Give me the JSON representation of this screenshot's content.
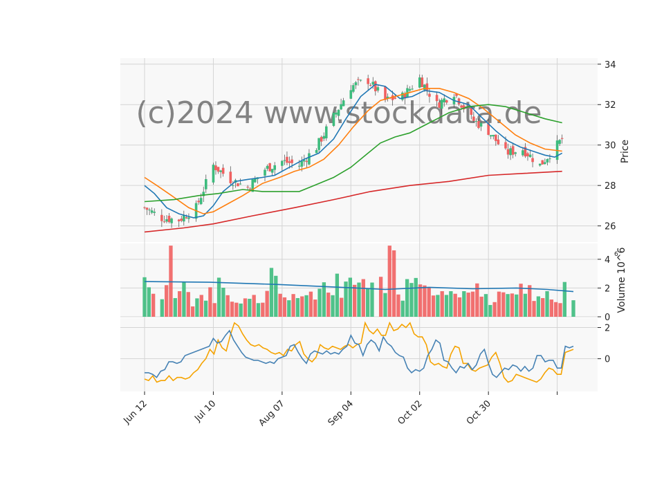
{
  "watermark": "(c)2024 www.stockdata.de",
  "colors": {
    "up": "#3dbb7d",
    "down": "#f06060",
    "panel_bg": "#f8f8f8",
    "grid": "#d4d4d4",
    "ma_fast": "#1f77b4",
    "ma_mid": "#ff7f0e",
    "ma_slow": "#2ca02c",
    "ma_long": "#d62728",
    "vol_ma": "#1f77b4",
    "osc_a": "#f5a300",
    "osc_b": "#4682b4"
  },
  "chart_data": {
    "type": "candlestick",
    "x_range": [
      "Jun 12",
      "Dec 05"
    ],
    "x_ticks": [
      "Jun 12",
      "Jul 10",
      "Aug 07",
      "Sep 04",
      "Oct 02",
      "Oct 30",
      ""
    ],
    "x_tick_positions": [
      "2023-06-12",
      "2023-07-10",
      "2023-08-07",
      "2023-09-04",
      "2023-10-02",
      "2023-10-30",
      "2023-11-27"
    ],
    "price_panel": {
      "ylabel": "Price",
      "ylim": [
        25.2,
        34.3
      ],
      "yticks": [
        26,
        28,
        30,
        32,
        34
      ],
      "close_path": [
        [
          "2023-06-12",
          26.9
        ],
        [
          "2023-06-19",
          26.4
        ],
        [
          "2023-06-26",
          26.3
        ],
        [
          "2023-07-03",
          26.9
        ],
        [
          "2023-07-10",
          29.0
        ],
        [
          "2023-07-17",
          28.3
        ],
        [
          "2023-07-24",
          27.9
        ],
        [
          "2023-07-31",
          28.8
        ],
        [
          "2023-08-07",
          29.2
        ],
        [
          "2023-08-14",
          29.0
        ],
        [
          "2023-08-21",
          29.9
        ],
        [
          "2023-08-28",
          31.4
        ],
        [
          "2023-09-04",
          32.9
        ],
        [
          "2023-09-11",
          33.2
        ],
        [
          "2023-09-18",
          32.2
        ],
        [
          "2023-09-25",
          32.4
        ],
        [
          "2023-10-02",
          33.3
        ],
        [
          "2023-10-09",
          32.0
        ],
        [
          "2023-10-16",
          32.6
        ],
        [
          "2023-10-23",
          31.3
        ],
        [
          "2023-10-30",
          30.7
        ],
        [
          "2023-11-06",
          29.6
        ],
        [
          "2023-11-13",
          29.8
        ],
        [
          "2023-11-20",
          29.0
        ],
        [
          "2023-11-27",
          30.0
        ],
        [
          "2023-11-29",
          30.3
        ]
      ],
      "moving_averages": [
        {
          "name": "",
          "color_key": "ma_fast",
          "points": [
            [
              "2023-06-12",
              28.0
            ],
            [
              "2023-06-16",
              27.6
            ],
            [
              "2023-06-21",
              26.9
            ],
            [
              "2023-06-26",
              26.6
            ],
            [
              "2023-07-02",
              26.4
            ],
            [
              "2023-07-06",
              26.5
            ],
            [
              "2023-07-10",
              27.0
            ],
            [
              "2023-07-14",
              27.7
            ],
            [
              "2023-07-19",
              28.2
            ],
            [
              "2023-07-24",
              28.3
            ],
            [
              "2023-07-30",
              28.4
            ],
            [
              "2023-08-04",
              28.5
            ],
            [
              "2023-08-10",
              28.9
            ],
            [
              "2023-08-16",
              29.3
            ],
            [
              "2023-08-22",
              29.6
            ],
            [
              "2023-08-28",
              30.3
            ],
            [
              "2023-09-02",
              31.3
            ],
            [
              "2023-09-08",
              32.4
            ],
            [
              "2023-09-14",
              33.0
            ],
            [
              "2023-09-18",
              32.9
            ],
            [
              "2023-09-24",
              32.3
            ],
            [
              "2023-09-29",
              32.4
            ],
            [
              "2023-10-04",
              32.7
            ],
            [
              "2023-10-10",
              32.6
            ],
            [
              "2023-10-16",
              32.2
            ],
            [
              "2023-10-22",
              32.0
            ],
            [
              "2023-10-27",
              31.4
            ],
            [
              "2023-11-02",
              30.7
            ],
            [
              "2023-11-07",
              30.2
            ],
            [
              "2023-11-12",
              29.9
            ],
            [
              "2023-11-17",
              29.7
            ],
            [
              "2023-11-22",
              29.5
            ],
            [
              "2023-11-26",
              29.4
            ],
            [
              "2023-11-29",
              29.6
            ]
          ]
        },
        {
          "name": "",
          "color_key": "ma_mid",
          "points": [
            [
              "2023-06-12",
              28.4
            ],
            [
              "2023-06-17",
              28.0
            ],
            [
              "2023-06-23",
              27.5
            ],
            [
              "2023-06-30",
              26.9
            ],
            [
              "2023-07-06",
              26.6
            ],
            [
              "2023-07-10",
              26.7
            ],
            [
              "2023-07-16",
              27.1
            ],
            [
              "2023-07-22",
              27.5
            ],
            [
              "2023-07-30",
              28.1
            ],
            [
              "2023-08-06",
              28.4
            ],
            [
              "2023-08-12",
              28.7
            ],
            [
              "2023-08-18",
              28.9
            ],
            [
              "2023-08-24",
              29.3
            ],
            [
              "2023-08-30",
              30.0
            ],
            [
              "2023-09-05",
              30.9
            ],
            [
              "2023-09-11",
              31.7
            ],
            [
              "2023-09-16",
              32.2
            ],
            [
              "2023-09-22",
              32.4
            ],
            [
              "2023-09-28",
              32.6
            ],
            [
              "2023-10-04",
              32.8
            ],
            [
              "2023-10-10",
              32.8
            ],
            [
              "2023-10-16",
              32.6
            ],
            [
              "2023-10-22",
              32.3
            ],
            [
              "2023-10-28",
              31.8
            ],
            [
              "2023-11-04",
              31.1
            ],
            [
              "2023-11-10",
              30.5
            ],
            [
              "2023-11-16",
              30.1
            ],
            [
              "2023-11-22",
              29.8
            ],
            [
              "2023-11-29",
              29.7
            ]
          ]
        },
        {
          "name": "",
          "color_key": "ma_slow",
          "points": [
            [
              "2023-06-12",
              27.2
            ],
            [
              "2023-06-24",
              27.3
            ],
            [
              "2023-07-04",
              27.5
            ],
            [
              "2023-07-12",
              27.6
            ],
            [
              "2023-07-22",
              27.8
            ],
            [
              "2023-07-30",
              27.7
            ],
            [
              "2023-08-08",
              27.7
            ],
            [
              "2023-08-14",
              27.7
            ],
            [
              "2023-08-20",
              28.0
            ],
            [
              "2023-08-28",
              28.4
            ],
            [
              "2023-09-04",
              28.9
            ],
            [
              "2023-09-10",
              29.5
            ],
            [
              "2023-09-16",
              30.1
            ],
            [
              "2023-09-22",
              30.4
            ],
            [
              "2023-09-28",
              30.6
            ],
            [
              "2023-10-06",
              31.1
            ],
            [
              "2023-10-14",
              31.6
            ],
            [
              "2023-10-22",
              31.9
            ],
            [
              "2023-10-30",
              32.0
            ],
            [
              "2023-11-06",
              31.9
            ],
            [
              "2023-11-14",
              31.6
            ],
            [
              "2023-11-22",
              31.3
            ],
            [
              "2023-11-29",
              31.1
            ]
          ]
        },
        {
          "name": "",
          "color_key": "ma_long",
          "points": [
            [
              "2023-06-12",
              25.7
            ],
            [
              "2023-06-28",
              25.9
            ],
            [
              "2023-07-10",
              26.1
            ],
            [
              "2023-07-26",
              26.5
            ],
            [
              "2023-08-12",
              26.9
            ],
            [
              "2023-08-28",
              27.3
            ],
            [
              "2023-09-12",
              27.7
            ],
            [
              "2023-09-28",
              28.0
            ],
            [
              "2023-10-14",
              28.2
            ],
            [
              "2023-10-30",
              28.5
            ],
            [
              "2023-11-14",
              28.6
            ],
            [
              "2023-11-29",
              28.7
            ]
          ]
        }
      ]
    },
    "volume_panel": {
      "ylabel": "Volume  10^6",
      "ylim": [
        0,
        5.1
      ],
      "yticks": [
        0,
        2,
        4
      ],
      "bars": [
        2.75,
        2.05,
        1.6,
        0.0,
        1.22,
        2.2,
        4.95,
        1.3,
        1.78,
        2.4,
        1.72,
        0.72,
        1.28,
        1.52,
        1.12,
        2.05,
        0.95,
        2.72,
        2.02,
        1.5,
        1.05,
        0.98,
        0.92,
        1.28,
        1.25,
        1.52,
        0.95,
        0.98,
        1.8,
        3.4,
        2.85,
        1.6,
        1.35,
        1.15,
        1.58,
        1.3,
        1.42,
        1.5,
        1.75,
        1.2,
        1.95,
        2.4,
        1.68,
        1.5,
        3.0,
        1.32,
        2.45,
        2.72,
        2.22,
        2.38,
        2.62,
        1.95,
        2.38,
        0.0,
        2.78,
        1.65,
        4.95,
        4.62,
        1.55,
        1.12,
        2.62,
        2.35,
        2.7,
        2.25,
        2.18,
        2.05,
        1.48,
        1.52,
        1.78,
        1.52,
        1.78,
        1.6,
        1.35,
        1.78,
        1.68,
        1.75,
        2.32,
        1.4,
        1.58,
        0.82,
        1.02,
        1.75,
        1.7,
        1.58,
        1.62,
        1.55,
        2.3,
        1.6,
        2.2,
        1.1,
        1.42,
        1.3,
        1.78,
        1.2,
        1.02,
        0.95,
        2.42,
        0.0,
        1.15
      ],
      "up": [
        true,
        true,
        false,
        false,
        true,
        false,
        false,
        true,
        false,
        true,
        false,
        false,
        true,
        false,
        true,
        false,
        false,
        true,
        true,
        false,
        false,
        false,
        true,
        false,
        true,
        false,
        true,
        false,
        false,
        true,
        true,
        false,
        false,
        true,
        false,
        true,
        false,
        true,
        false,
        false,
        true,
        true,
        false,
        true,
        true,
        false,
        true,
        true,
        false,
        true,
        false,
        true,
        true,
        false,
        false,
        true,
        false,
        false,
        false,
        true,
        true,
        true,
        true,
        false,
        false,
        false,
        false,
        true,
        false,
        true,
        true,
        false,
        false,
        true,
        false,
        false,
        false,
        false,
        true,
        true,
        false,
        false,
        false,
        true,
        false,
        true,
        false,
        true,
        false,
        false,
        true,
        false,
        true,
        false,
        false,
        false,
        true,
        false,
        true
      ],
      "ma": [
        [
          0,
          2.45
        ],
        [
          15,
          2.4
        ],
        [
          30,
          2.25
        ],
        [
          45,
          2.05
        ],
        [
          55,
          1.9
        ],
        [
          65,
          2.05
        ],
        [
          75,
          1.95
        ],
        [
          85,
          2.0
        ],
        [
          92,
          1.9
        ],
        [
          98,
          1.75
        ]
      ]
    },
    "oscillator_panel": {
      "ylim": [
        -2.1,
        2.6
      ],
      "yticks": [
        0,
        2
      ],
      "series_a": [
        -1.3,
        -1.4,
        -1.1,
        -1.5,
        -1.4,
        -1.4,
        -1.1,
        -1.4,
        -1.2,
        -1.2,
        -1.3,
        -1.2,
        -0.9,
        -0.7,
        -0.3,
        0.0,
        0.6,
        0.3,
        1.2,
        0.7,
        0.5,
        1.5,
        2.3,
        2.1,
        1.6,
        1.2,
        0.9,
        0.8,
        0.9,
        0.7,
        0.6,
        0.4,
        0.3,
        0.4,
        0.2,
        0.6,
        0.5,
        0.9,
        1.1,
        0.3,
        0.0,
        -0.2,
        0.1,
        0.9,
        0.7,
        0.6,
        0.8,
        0.7,
        0.6,
        0.8,
        0.9,
        0.7,
        0.9,
        1.0,
        2.3,
        1.8,
        1.6,
        1.9,
        1.5,
        1.5,
        2.3,
        1.8,
        1.9,
        2.2,
        2.0,
        2.3,
        1.6,
        1.4,
        1.4,
        0.9,
        -0.2,
        -0.4,
        -0.3,
        -0.5,
        -0.6,
        0.3,
        0.8,
        0.7,
        -0.3,
        -0.3,
        -0.7,
        -0.8,
        -0.6,
        -0.5,
        -0.4,
        0.1,
        0.4,
        -0.3,
        -1.2,
        -1.5,
        -1.4,
        -1.0,
        -1.1,
        -1.2,
        -1.3,
        -1.4,
        -1.5,
        -1.3,
        -0.9,
        -0.6,
        -0.7,
        -1.0,
        -1.0,
        0.4,
        0.5,
        0.6
      ],
      "series_b": [
        -0.9,
        -0.9,
        -1.0,
        -1.2,
        -0.8,
        -0.7,
        -0.2,
        -0.2,
        -0.3,
        -0.2,
        0.2,
        0.3,
        0.4,
        0.5,
        0.6,
        0.7,
        0.8,
        1.3,
        1.0,
        1.1,
        1.5,
        1.8,
        1.2,
        0.8,
        0.4,
        0.1,
        0.0,
        -0.1,
        -0.1,
        -0.2,
        -0.3,
        -0.2,
        -0.3,
        0.0,
        0.1,
        0.2,
        0.8,
        0.9,
        0.4,
        0.0,
        -0.3,
        0.3,
        0.5,
        0.4,
        0.3,
        0.5,
        0.3,
        0.4,
        0.3,
        0.6,
        0.8,
        1.5,
        1.0,
        0.9,
        0.2,
        0.9,
        1.2,
        1.0,
        0.5,
        1.4,
        1.0,
        0.8,
        0.4,
        0.2,
        0.1,
        -0.6,
        -0.9,
        -0.7,
        -0.8,
        -0.6,
        0.2,
        0.6,
        1.2,
        1.0,
        -0.1,
        -0.2,
        -0.6,
        -0.9,
        -0.5,
        -0.6,
        -0.3,
        -0.7,
        -0.4,
        0.3,
        0.6,
        -0.3,
        -1.0,
        -1.2,
        -0.9,
        -0.6,
        -0.7,
        -0.4,
        -0.5,
        -0.8,
        -0.5,
        -0.8,
        -0.6,
        0.2,
        0.2,
        -0.2,
        -0.1,
        -0.1,
        -0.6,
        -0.6,
        0.8,
        0.7,
        0.8
      ]
    }
  }
}
